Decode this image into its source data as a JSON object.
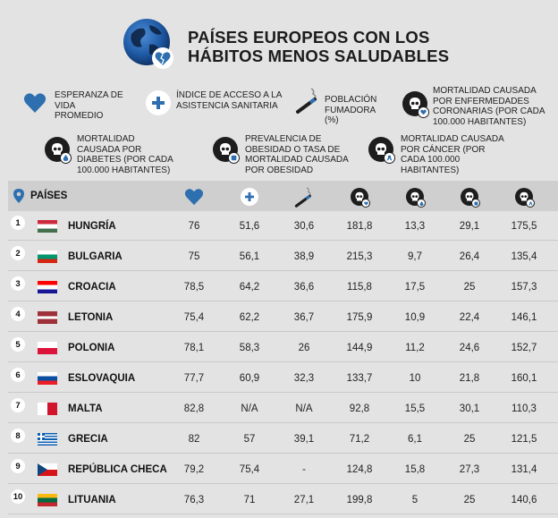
{
  "title_line1": "PAÍSES EUROPEOS CON LOS",
  "title_line2": "HÁBITOS MENOS SALUDABLES",
  "legend": [
    {
      "icon": "heart-icon",
      "text": "ESPERANZA DE VIDA PROMEDIO"
    },
    {
      "icon": "medical-cross-icon",
      "text": "ÍNDICE DE ACCESO A LA ASISTENCIA SANITARIA"
    },
    {
      "icon": "cigarette-icon",
      "text": "POBLACIÓN FUMADORA (%)"
    },
    {
      "icon": "skull-heart-icon",
      "text": "MORTALIDAD CAUSADA POR ENFERMEDADES CORONARIAS (POR CADA 100.000 HABITANTES)"
    },
    {
      "icon": "skull-drop-icon",
      "text": "MORTALIDAD CAUSADA POR DIABETES (POR CADA 100.000 HABITANTES)"
    },
    {
      "icon": "skull-scale-icon",
      "text": "PREVALENCIA DE OBESIDAD O TASA DE MORTALIDAD CAUSADA POR OBESIDAD"
    },
    {
      "icon": "skull-ribbon-icon",
      "text": "MORTALIDAD CAUSADA POR CÁNCER (POR CADA 100.000 HABITANTES)"
    }
  ],
  "table": {
    "header_label": "PAÍSES",
    "rows": [
      {
        "rank": "1",
        "country": "HUNGRÍA",
        "flag": [
          "#cd2a3e",
          "#ffffff",
          "#436f4d"
        ],
        "flag_type": "h",
        "values": [
          "76",
          "51,6",
          "30,6",
          "181,8",
          "13,3",
          "29,1",
          "175,5"
        ]
      },
      {
        "rank": "2",
        "country": "BULGARIA",
        "flag": [
          "#ffffff",
          "#00966e",
          "#d62612"
        ],
        "flag_type": "h",
        "values": [
          "75",
          "56,1",
          "38,9",
          "215,3",
          "9,7",
          "26,4",
          "135,4"
        ]
      },
      {
        "rank": "3",
        "country": "CROACIA",
        "flag": [
          "#ff0000",
          "#ffffff",
          "#171796"
        ],
        "flag_type": "h",
        "values": [
          "78,5",
          "64,2",
          "36,6",
          "115,8",
          "17,5",
          "25",
          "157,3"
        ]
      },
      {
        "rank": "4",
        "country": "LETONIA",
        "flag": [
          "#9e3039",
          "#ffffff",
          "#9e3039"
        ],
        "flag_type": "lv",
        "values": [
          "75,4",
          "62,2",
          "36,7",
          "175,9",
          "10,9",
          "22,4",
          "146,1"
        ]
      },
      {
        "rank": "5",
        "country": "POLONIA",
        "flag": [
          "#ffffff",
          "#dc143c"
        ],
        "flag_type": "h2",
        "values": [
          "78,1",
          "58,3",
          "26",
          "144,9",
          "11,2",
          "24,6",
          "152,7"
        ]
      },
      {
        "rank": "6",
        "country": "ESLOVAQUIA",
        "flag": [
          "#ffffff",
          "#0b4ea2",
          "#ee1c25"
        ],
        "flag_type": "h",
        "values": [
          "77,7",
          "60,9",
          "32,3",
          "133,7",
          "10",
          "21,8",
          "160,1"
        ]
      },
      {
        "rank": "7",
        "country": "MALTA",
        "flag": [
          "#ffffff",
          "#cf142b"
        ],
        "flag_type": "v2",
        "values": [
          "82,8",
          "N/A",
          "N/A",
          "92,8",
          "15,5",
          "30,1",
          "110,3"
        ]
      },
      {
        "rank": "8",
        "country": "GRECIA",
        "flag": [
          "#0d5eaf",
          "#ffffff"
        ],
        "flag_type": "gr",
        "values": [
          "82",
          "57",
          "39,1",
          "71,2",
          "6,1",
          "25",
          "121,5"
        ]
      },
      {
        "rank": "9",
        "country": "REPÚBLICA CHECA",
        "flag": [
          "#ffffff",
          "#d7141a",
          "#11457e"
        ],
        "flag_type": "cz",
        "values": [
          "79,2",
          "75,4",
          "-",
          "124,8",
          "15,8",
          "27,3",
          "131,4"
        ]
      },
      {
        "rank": "10",
        "country": "LITUANIA",
        "flag": [
          "#fdb913",
          "#006a44",
          "#c1272d"
        ],
        "flag_type": "h",
        "values": [
          "76,3",
          "71",
          "27,1",
          "199,8",
          "5",
          "25",
          "140,6"
        ]
      }
    ]
  },
  "colors": {
    "accent": "#2e6fb0",
    "background": "#e3e3e3",
    "header_band": "#cfcfcf",
    "dark": "#1d1d1d"
  }
}
